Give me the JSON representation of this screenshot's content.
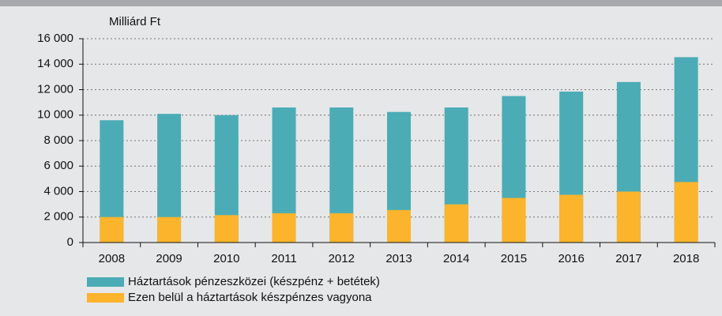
{
  "chart_data": {
    "type": "bar",
    "y_label": "Milliárd Ft",
    "categories": [
      "2008",
      "2009",
      "2010",
      "2011",
      "2012",
      "2013",
      "2014",
      "2015",
      "2016",
      "2017",
      "2018"
    ],
    "series": [
      {
        "name": "Háztartások pénzeszközei (készpénz + betétek)",
        "color": "#4bacb6",
        "values": [
          9600,
          10100,
          10000,
          10600,
          10600,
          10250,
          10600,
          11500,
          11850,
          12600,
          14550
        ]
      },
      {
        "name": "Ezen belül a háztartások készpénzes vagyona",
        "color": "#fbb42c",
        "values": [
          2000,
          2000,
          2150,
          2300,
          2300,
          2550,
          3000,
          3500,
          3750,
          4000,
          4750
        ]
      }
    ],
    "ylim": [
      0,
      16000
    ],
    "yticks": [
      0,
      {
        "value": 2000,
        "label": "2 000"
      },
      {
        "value": 4000,
        "label": "4 000"
      },
      {
        "value": 6000,
        "label": "6 000"
      },
      {
        "value": 8000,
        "label": "8 000"
      },
      {
        "value": 10000,
        "label": "10 000"
      },
      {
        "value": 12000,
        "label": "12 000"
      },
      {
        "value": 14000,
        "label": "14 000"
      },
      {
        "value": 16000,
        "label": "16 000"
      }
    ],
    "grid": true
  }
}
